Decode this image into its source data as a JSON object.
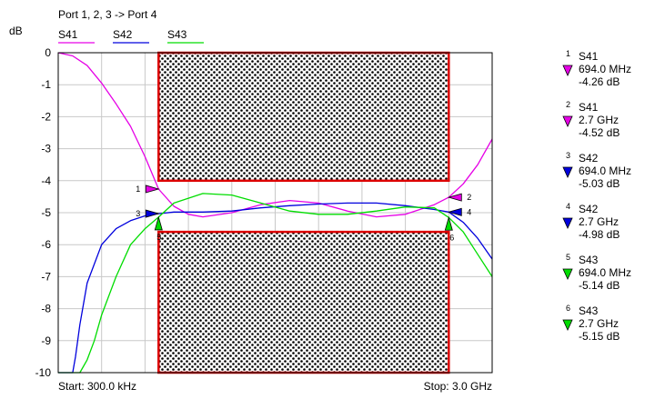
{
  "chart_data": {
    "type": "line",
    "title": "Port 1, 2, 3 -> Port 4",
    "ylabel": "dB",
    "start_label": "Start: 300.0 kHz",
    "stop_label": "Stop: 3.0 GHz",
    "x_range_mhz": [
      0.3,
      3000
    ],
    "ylim": [
      -10,
      0
    ],
    "y_ticks": [
      0,
      -1,
      -2,
      -3,
      -4,
      -5,
      -6,
      -7,
      -8,
      -9,
      -10
    ],
    "y_tick_labels": [
      "0",
      "-1",
      "-2",
      "-3",
      "-4",
      "-5",
      "-6",
      "-7",
      "-8",
      "-9",
      "-10"
    ],
    "x_gridlines": 9,
    "grid": true,
    "legend_position": "top",
    "colors": {
      "S41": "#e600e6",
      "S42": "#0000dd",
      "S43": "#00dd00",
      "limit": "#dd0000",
      "grid": "#c8c8c8"
    },
    "series": [
      {
        "name": "S41",
        "x": [
          0.3,
          100,
          200,
          300,
          400,
          500,
          600,
          694,
          800,
          900,
          1000,
          1200,
          1400,
          1600,
          1800,
          2000,
          2200,
          2400,
          2600,
          2700,
          2800,
          2900,
          3000
        ],
        "y": [
          0.0,
          -0.1,
          -0.4,
          -0.95,
          -1.6,
          -2.3,
          -3.25,
          -4.26,
          -4.8,
          -5.05,
          -5.13,
          -5.0,
          -4.75,
          -4.62,
          -4.7,
          -4.95,
          -5.13,
          -5.05,
          -4.75,
          -4.52,
          -4.1,
          -3.5,
          -2.7
        ]
      },
      {
        "name": "S42",
        "x": [
          0.3,
          100,
          120,
          150,
          200,
          300,
          400,
          500,
          600,
          694,
          800,
          1000,
          1200,
          1400,
          1600,
          1800,
          2000,
          2200,
          2400,
          2600,
          2700,
          2800,
          2900,
          3000
        ],
        "y": [
          -10,
          -10,
          -9.5,
          -8.5,
          -7.2,
          -6.0,
          -5.5,
          -5.25,
          -5.1,
          -5.03,
          -4.98,
          -4.98,
          -4.95,
          -4.85,
          -4.78,
          -4.73,
          -4.7,
          -4.7,
          -4.78,
          -4.9,
          -4.98,
          -5.3,
          -5.8,
          -6.45
        ]
      },
      {
        "name": "S43",
        "x": [
          0.3,
          150,
          200,
          250,
          300,
          400,
          500,
          600,
          694,
          800,
          1000,
          1200,
          1400,
          1600,
          1800,
          2000,
          2200,
          2400,
          2600,
          2700,
          2800,
          2900,
          3000
        ],
        "y": [
          -10,
          -10,
          -9.6,
          -9.0,
          -8.2,
          -7.0,
          -6.0,
          -5.5,
          -5.14,
          -4.7,
          -4.4,
          -4.45,
          -4.7,
          -4.95,
          -5.05,
          -5.05,
          -4.95,
          -4.82,
          -4.85,
          -5.15,
          -5.6,
          -6.3,
          -7.0
        ]
      }
    ],
    "limit_masks": [
      {
        "x_mhz": [
          694,
          2700
        ],
        "upper_db": -4.0,
        "description": "upper rejection box from 0 to -4 dB"
      },
      {
        "x_mhz": [
          694,
          2700
        ],
        "lower_db": -5.6,
        "description": "lower rejection box from -5.6 to -10 dB"
      }
    ],
    "markers": [
      {
        "id": "1",
        "trace": "S41",
        "freq": "694.0 MHz",
        "value": "-4.26 dB",
        "x_mhz": 694,
        "y_db": -4.26,
        "side": "left"
      },
      {
        "id": "2",
        "trace": "S41",
        "freq": "2.7 GHz",
        "value": "-4.52 dB",
        "x_mhz": 2700,
        "y_db": -4.52,
        "side": "right"
      },
      {
        "id": "3",
        "trace": "S42",
        "freq": "694.0 MHz",
        "value": "-5.03 dB",
        "x_mhz": 694,
        "y_db": -5.03,
        "side": "left"
      },
      {
        "id": "4",
        "trace": "S42",
        "freq": "2.7 GHz",
        "value": "-4.98 dB",
        "x_mhz": 2700,
        "y_db": -4.98,
        "side": "right"
      },
      {
        "id": "5",
        "trace": "S43",
        "freq": "694.0 MHz",
        "value": "-5.14 dB",
        "x_mhz": 694,
        "y_db": -5.14,
        "side": "below"
      },
      {
        "id": "6",
        "trace": "S43",
        "freq": "2.7 GHz",
        "value": "-5.15 dB",
        "x_mhz": 2700,
        "y_db": -5.15,
        "side": "below"
      }
    ]
  }
}
